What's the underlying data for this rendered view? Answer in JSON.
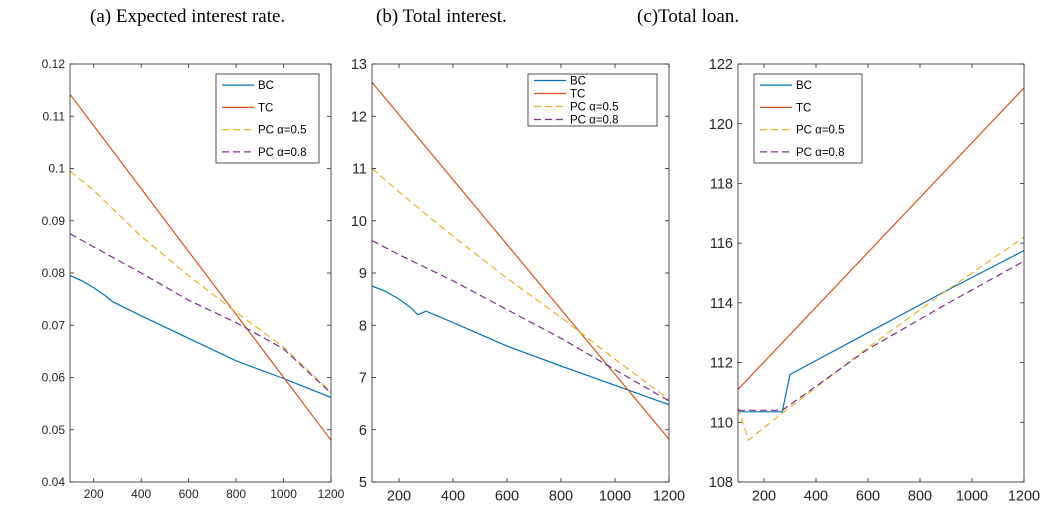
{
  "captions": [
    "(a) Expected interest rate.",
    "(b) Total interest.",
    "(c)Total loan."
  ],
  "colors": {
    "BC": "#0072BD",
    "TC": "#D95319",
    "PC_05": "#EDB120",
    "PC_08": "#7E2F8E",
    "axis": "#262626"
  },
  "chart_data": [
    {
      "type": "line",
      "caption": "(a) Expected interest rate.",
      "xlim": [
        100,
        1200
      ],
      "ylim": [
        0.04,
        0.12
      ],
      "xticks": [
        200,
        400,
        600,
        800,
        1000,
        1200
      ],
      "xtick_labels": [
        "200",
        "400",
        "600",
        "800",
        "1000",
        "1200"
      ],
      "yticks": [
        0.04,
        0.05,
        0.06,
        0.07,
        0.08,
        0.09,
        0.1,
        0.11,
        0.12
      ],
      "ytick_labels": [
        "0.04",
        "0.05",
        "0.06",
        "0.07",
        "0.08",
        "0.09",
        "0.1",
        "0.11",
        "0.12"
      ],
      "legend_position": "top-right",
      "series": [
        {
          "name": "BC",
          "style": "solid",
          "x": [
            100,
            150,
            200,
            250,
            280,
            400,
            600,
            800,
            1000,
            1200
          ],
          "y": [
            0.0795,
            0.0785,
            0.0772,
            0.0756,
            0.0745,
            0.0718,
            0.0675,
            0.0632,
            0.0598,
            0.0562
          ]
        },
        {
          "name": "TC",
          "style": "solid",
          "x": [
            100,
            1200
          ],
          "y": [
            0.1142,
            0.048
          ]
        },
        {
          "name": "PC α=0.5",
          "style": "dashed",
          "x": [
            100,
            200,
            400,
            600,
            800,
            1000,
            1200
          ],
          "y": [
            0.0995,
            0.0958,
            0.087,
            0.0795,
            0.0725,
            0.0658,
            0.0572
          ]
        },
        {
          "name": "PC α=0.8",
          "style": "dashed",
          "x": [
            100,
            200,
            400,
            600,
            800,
            1000,
            1200
          ],
          "y": [
            0.0875,
            0.085,
            0.08,
            0.0748,
            0.0705,
            0.0655,
            0.057
          ]
        }
      ]
    },
    {
      "type": "line",
      "caption": "(b) Total interest.",
      "xlim": [
        100,
        1200
      ],
      "ylim": [
        5,
        13
      ],
      "xticks": [
        200,
        400,
        600,
        800,
        1000,
        1200
      ],
      "xtick_labels": [
        "200",
        "400",
        "600",
        "800",
        "1000",
        "1200"
      ],
      "yticks": [
        5,
        6,
        7,
        8,
        9,
        10,
        11,
        12,
        13
      ],
      "ytick_labels": [
        "5",
        "6",
        "7",
        "8",
        "9",
        "10",
        "11",
        "12",
        "13"
      ],
      "legend_position": "top-right",
      "series": [
        {
          "name": "BC",
          "style": "solid",
          "x": [
            100,
            150,
            200,
            240,
            270,
            300,
            400,
            600,
            800,
            1000,
            1200
          ],
          "y": [
            8.75,
            8.65,
            8.5,
            8.35,
            8.2,
            8.27,
            8.05,
            7.6,
            7.22,
            6.85,
            6.48
          ]
        },
        {
          "name": "TC",
          "style": "solid",
          "x": [
            100,
            1200
          ],
          "y": [
            12.65,
            5.82
          ]
        },
        {
          "name": "PC α=0.5",
          "style": "dashed",
          "x": [
            100,
            200,
            400,
            600,
            800,
            1000,
            1200
          ],
          "y": [
            11.0,
            10.55,
            9.7,
            8.9,
            8.15,
            7.35,
            6.58
          ]
        },
        {
          "name": "PC α=0.8",
          "style": "dashed",
          "x": [
            100,
            200,
            400,
            600,
            800,
            1000,
            1200
          ],
          "y": [
            9.62,
            9.35,
            8.85,
            8.3,
            7.75,
            7.15,
            6.55
          ]
        }
      ]
    },
    {
      "type": "line",
      "caption": "(c)Total loan.",
      "xlim": [
        100,
        1200
      ],
      "ylim": [
        108,
        122
      ],
      "xticks": [
        200,
        400,
        600,
        800,
        1000,
        1200
      ],
      "xtick_labels": [
        "200",
        "400",
        "600",
        "800",
        "1000",
        "1200"
      ],
      "yticks": [
        108,
        110,
        112,
        114,
        116,
        118,
        120,
        122
      ],
      "ytick_labels": [
        "108",
        "110",
        "112",
        "114",
        "116",
        "118",
        "120",
        "122"
      ],
      "legend_position": "top-left",
      "series": [
        {
          "name": "BC",
          "style": "solid",
          "x": [
            100,
            270,
            300,
            600,
            900,
            1200
          ],
          "y": [
            110.35,
            110.35,
            111.6,
            113.0,
            114.4,
            115.75
          ]
        },
        {
          "name": "TC",
          "style": "solid",
          "x": [
            100,
            1200
          ],
          "y": [
            111.1,
            121.2
          ]
        },
        {
          "name": "PC α=0.5",
          "style": "dashed",
          "x": [
            100,
            140,
            270,
            600,
            900,
            1200
          ],
          "y": [
            110.5,
            109.4,
            110.3,
            112.5,
            114.4,
            116.2
          ]
        },
        {
          "name": "PC α=0.8",
          "style": "dashed",
          "x": [
            100,
            270,
            600,
            900,
            1200
          ],
          "y": [
            110.4,
            110.4,
            112.45,
            113.95,
            115.4
          ]
        }
      ]
    }
  ]
}
